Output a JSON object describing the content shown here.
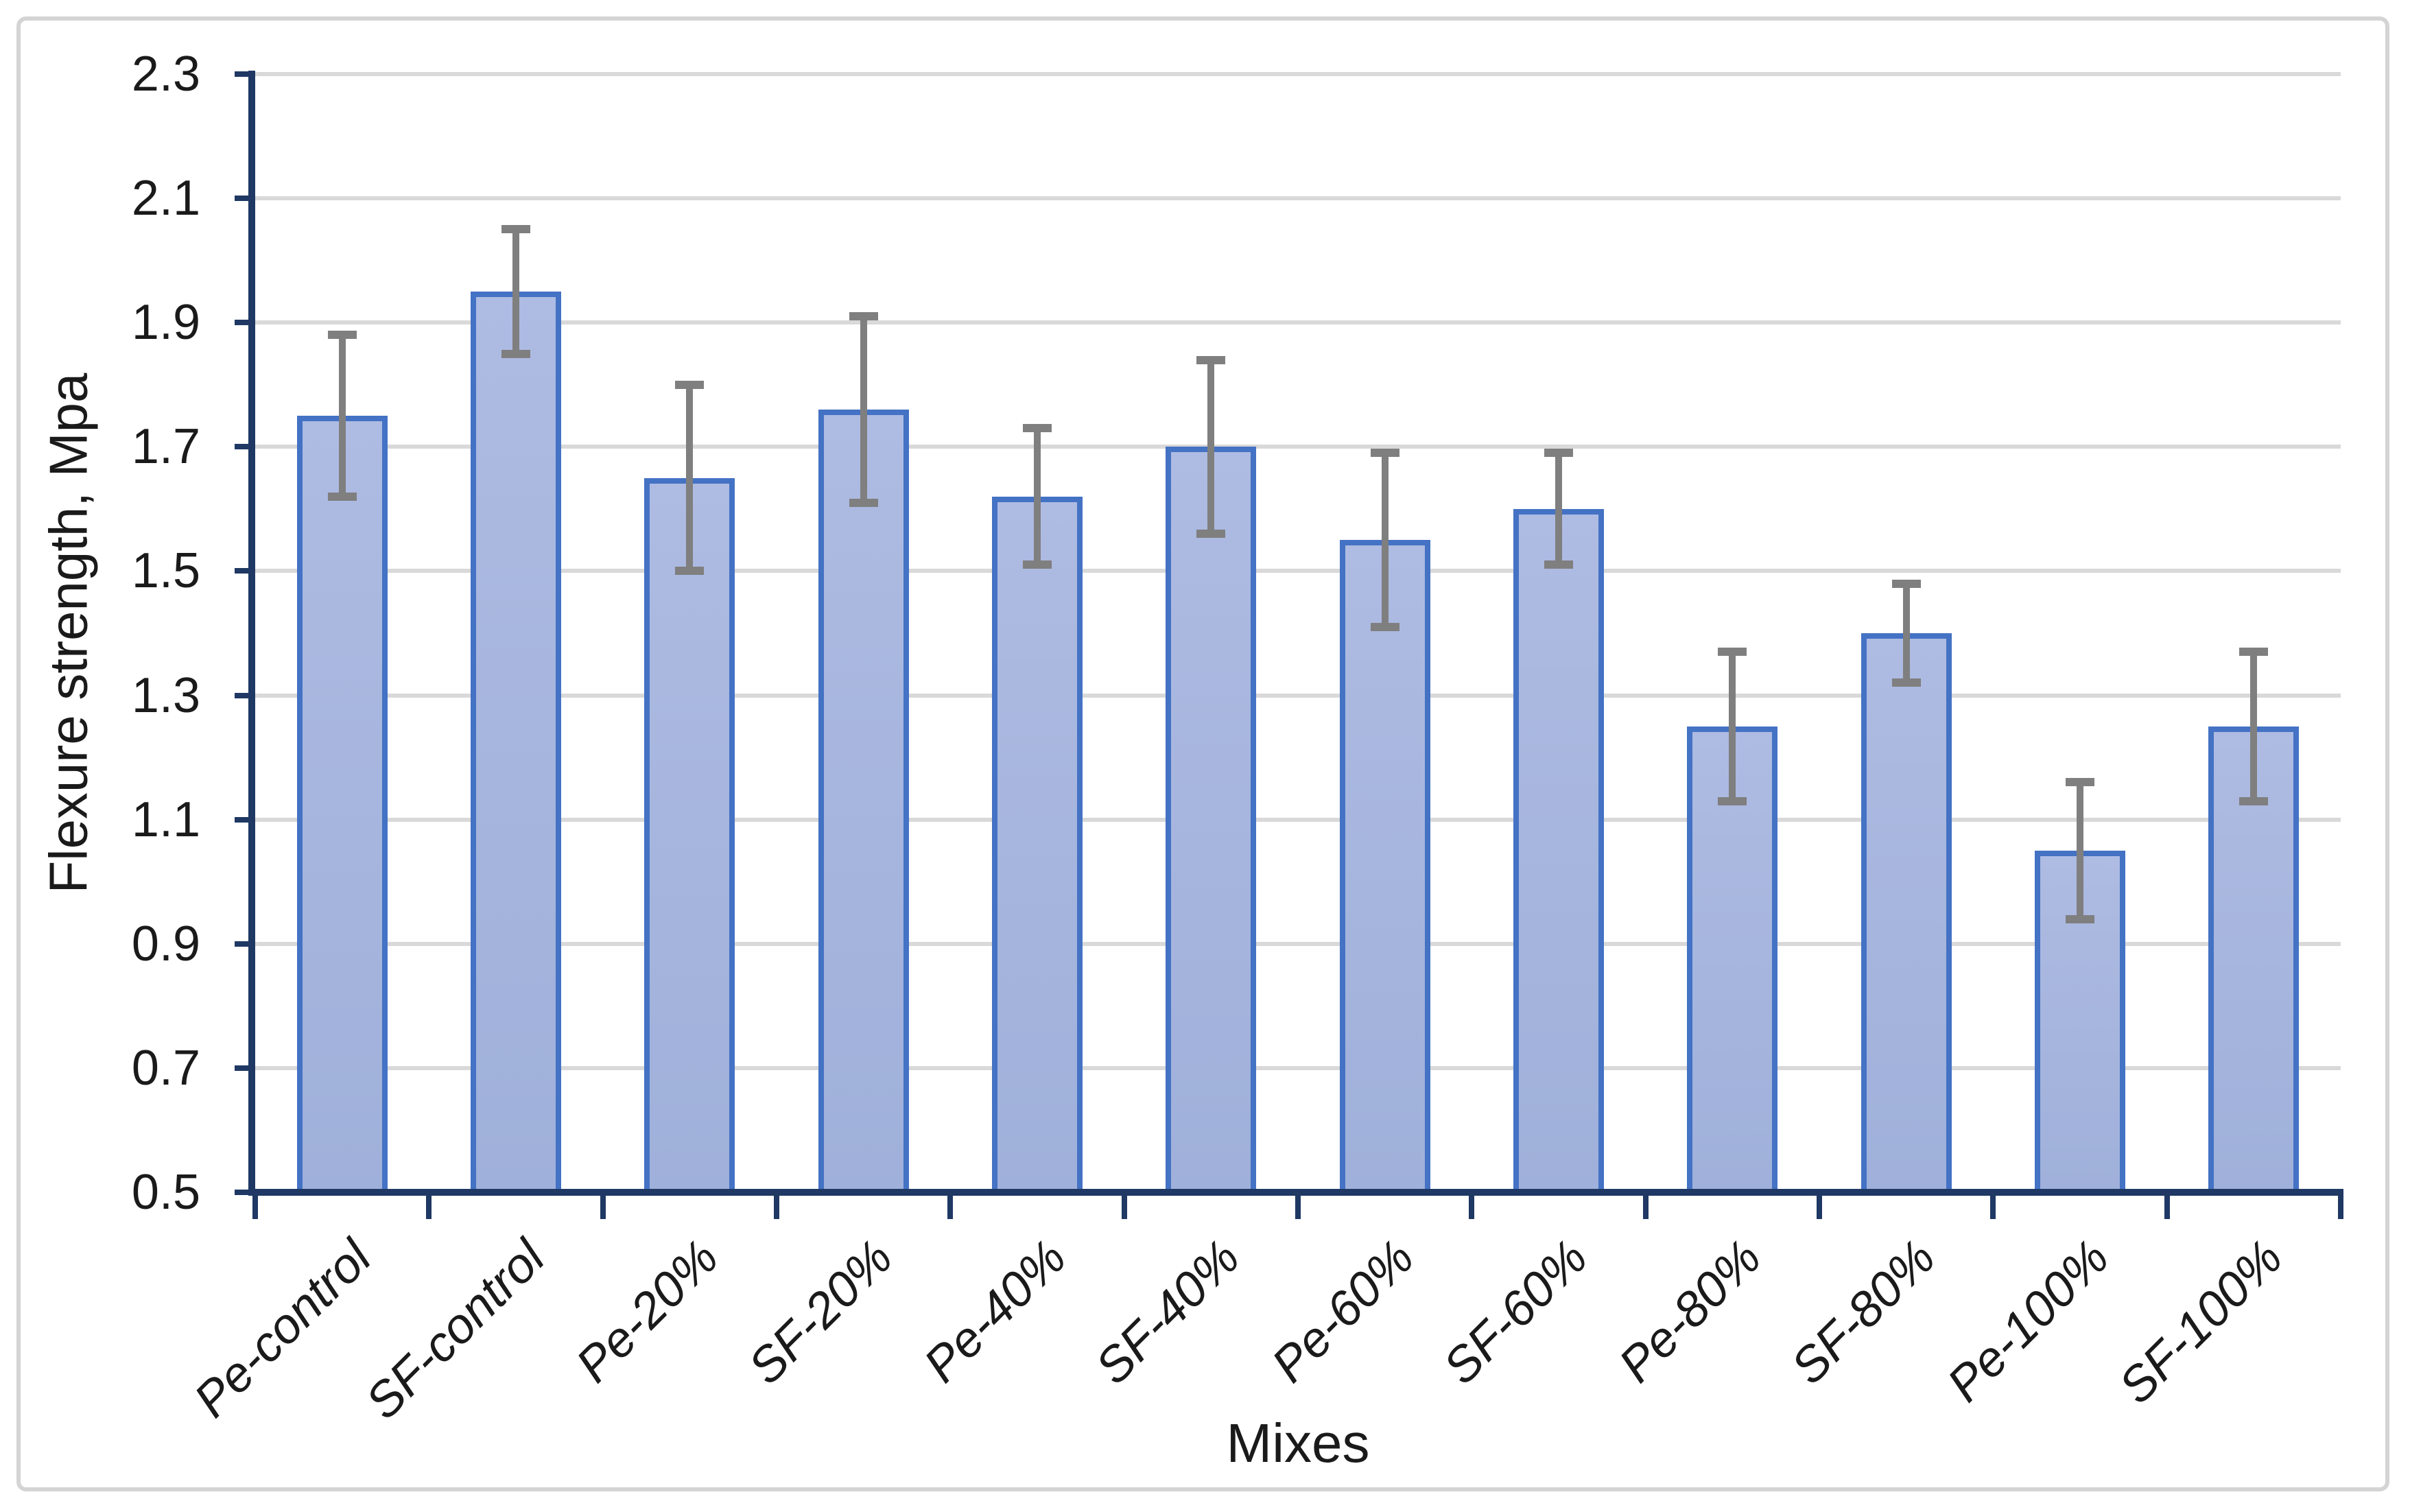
{
  "figure": {
    "background": "#ffffff",
    "border_color": "#d4d4d4"
  },
  "chart_data": {
    "type": "bar",
    "title": "",
    "xlabel": "Mixes",
    "ylabel": "Flexure strength, Mpa",
    "categories": [
      "Pe-control",
      "SF-control",
      "Pe-20%",
      "SF-20%",
      "Pe-40%",
      "SF-40%",
      "Pe-60%",
      "SF-60%",
      "Pe-80%",
      "SF-80%",
      "Pe-100%",
      "SF-100%"
    ],
    "values": [
      1.75,
      1.95,
      1.65,
      1.76,
      1.62,
      1.7,
      1.55,
      1.6,
      1.25,
      1.4,
      1.05,
      1.25
    ],
    "error": [
      0.13,
      0.1,
      0.15,
      0.15,
      0.11,
      0.14,
      0.14,
      0.09,
      0.12,
      0.08,
      0.11,
      0.12
    ],
    "ylim": [
      0.5,
      2.3
    ],
    "ytick_step": 0.2,
    "yticks": [
      "0.5",
      "0.7",
      "0.9",
      "1.1",
      "1.3",
      "1.5",
      "1.7",
      "1.9",
      "2.1",
      "2.3"
    ],
    "grid": true,
    "legend": false,
    "bar_fill_top": "#aebbe2",
    "bar_fill_bottom": "#9fb0da",
    "bar_border_color": "#4472c4",
    "axis_color": "#1f3864",
    "gridline_color": "#d9d9d9",
    "error_bar_color": "#7f7f7f",
    "text_color": "#1a1a1a"
  }
}
